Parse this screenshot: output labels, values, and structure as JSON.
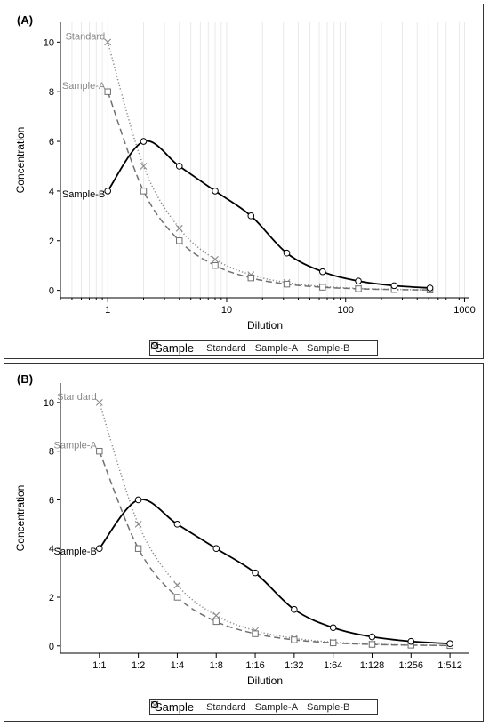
{
  "chart_data": [
    {
      "type": "line",
      "panel_label": "(A)",
      "xscale": "log",
      "x": [
        1,
        2,
        4,
        8,
        16,
        32,
        64,
        128,
        256,
        512
      ],
      "xticks": [
        1,
        10,
        100,
        1000
      ],
      "xticklabels": [
        "1",
        "10",
        "100",
        "1000"
      ],
      "xlim": [
        0.4,
        1100
      ],
      "ylim": [
        -0.3,
        10.8
      ],
      "yticks": [
        0,
        2,
        4,
        6,
        8,
        10
      ],
      "xlabel": "Dilution",
      "ylabel": "Concentration",
      "grid": "vertical minor lines",
      "legend_title": "Sample",
      "legend_position": "bottom",
      "series": [
        {
          "name": "Standard",
          "marker": "x",
          "line": "dotted",
          "color": "#8a8a8a",
          "values": [
            10,
            5,
            2.5,
            1.25,
            0.625,
            0.3125,
            0.15625,
            0.078,
            0.039,
            0.0195
          ]
        },
        {
          "name": "Sample-A",
          "marker": "square",
          "line": "dashed",
          "color": "#707070",
          "values": [
            8,
            4,
            2,
            1,
            0.5,
            0.25,
            0.125,
            0.0625,
            0.03125,
            0.0156
          ]
        },
        {
          "name": "Sample-B",
          "marker": "circle",
          "line": "solid",
          "color": "#000000",
          "values": [
            4,
            6,
            5,
            4,
            3,
            1.5,
            0.75,
            0.375,
            0.1875,
            0.09375
          ]
        }
      ]
    },
    {
      "type": "line",
      "panel_label": "(B)",
      "xscale": "category",
      "categories": [
        "1:1",
        "1:2",
        "1:4",
        "1:8",
        "1:16",
        "1:32",
        "1:64",
        "1:128",
        "1:256",
        "1:512"
      ],
      "ylim": [
        -0.3,
        10.8
      ],
      "yticks": [
        0,
        2,
        4,
        6,
        8,
        10
      ],
      "xlabel": "Dilution",
      "ylabel": "Concentration",
      "grid": "off",
      "legend_title": "Sample",
      "legend_position": "bottom",
      "series": [
        {
          "name": "Standard",
          "marker": "x",
          "line": "dotted",
          "color": "#8a8a8a",
          "values": [
            10,
            5,
            2.5,
            1.25,
            0.625,
            0.3125,
            0.15625,
            0.078,
            0.039,
            0.0195
          ]
        },
        {
          "name": "Sample-A",
          "marker": "square",
          "line": "dashed",
          "color": "#707070",
          "values": [
            8,
            4,
            2,
            1,
            0.5,
            0.25,
            0.125,
            0.0625,
            0.03125,
            0.0156
          ]
        },
        {
          "name": "Sample-B",
          "marker": "circle",
          "line": "solid",
          "color": "#000000",
          "values": [
            4,
            6,
            5,
            4,
            3,
            1.5,
            0.75,
            0.375,
            0.1875,
            0.09375
          ]
        }
      ]
    }
  ]
}
